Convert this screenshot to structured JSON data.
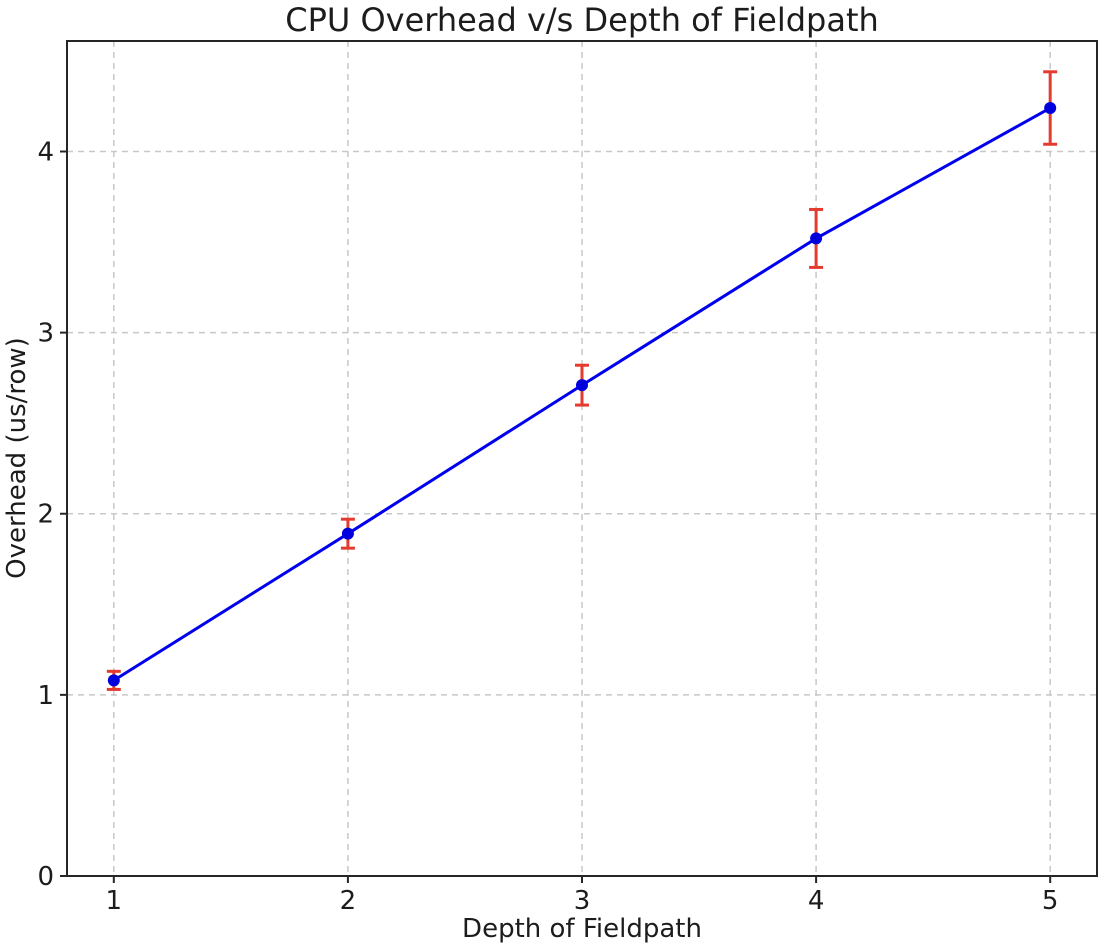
{
  "chart_data": {
    "type": "line",
    "title": "CPU Overhead v/s Depth of Fieldpath",
    "xlabel": "Depth of Fieldpath",
    "ylabel": "Overhead (us/row)",
    "x": [
      1,
      2,
      3,
      4,
      5
    ],
    "y": [
      1.08,
      1.89,
      2.71,
      3.52,
      4.24
    ],
    "yerr": [
      0.05,
      0.08,
      0.11,
      0.16,
      0.2
    ],
    "x_ticks": [
      1,
      2,
      3,
      4,
      5
    ],
    "y_ticks": [
      0,
      1,
      2,
      3,
      4
    ],
    "xlim": [
      0.8,
      5.2
    ],
    "ylim": [
      0,
      4.61
    ],
    "grid": true,
    "grid_style": "dashed",
    "legend": false,
    "marker": "circle",
    "colors": {
      "line": "#0000ee",
      "marker": "#0000dd",
      "error": "#e53a2e",
      "grid": "#c8c8c8",
      "frame": "#262626",
      "text": "#1c1c1c",
      "background": "#ffffff"
    }
  }
}
